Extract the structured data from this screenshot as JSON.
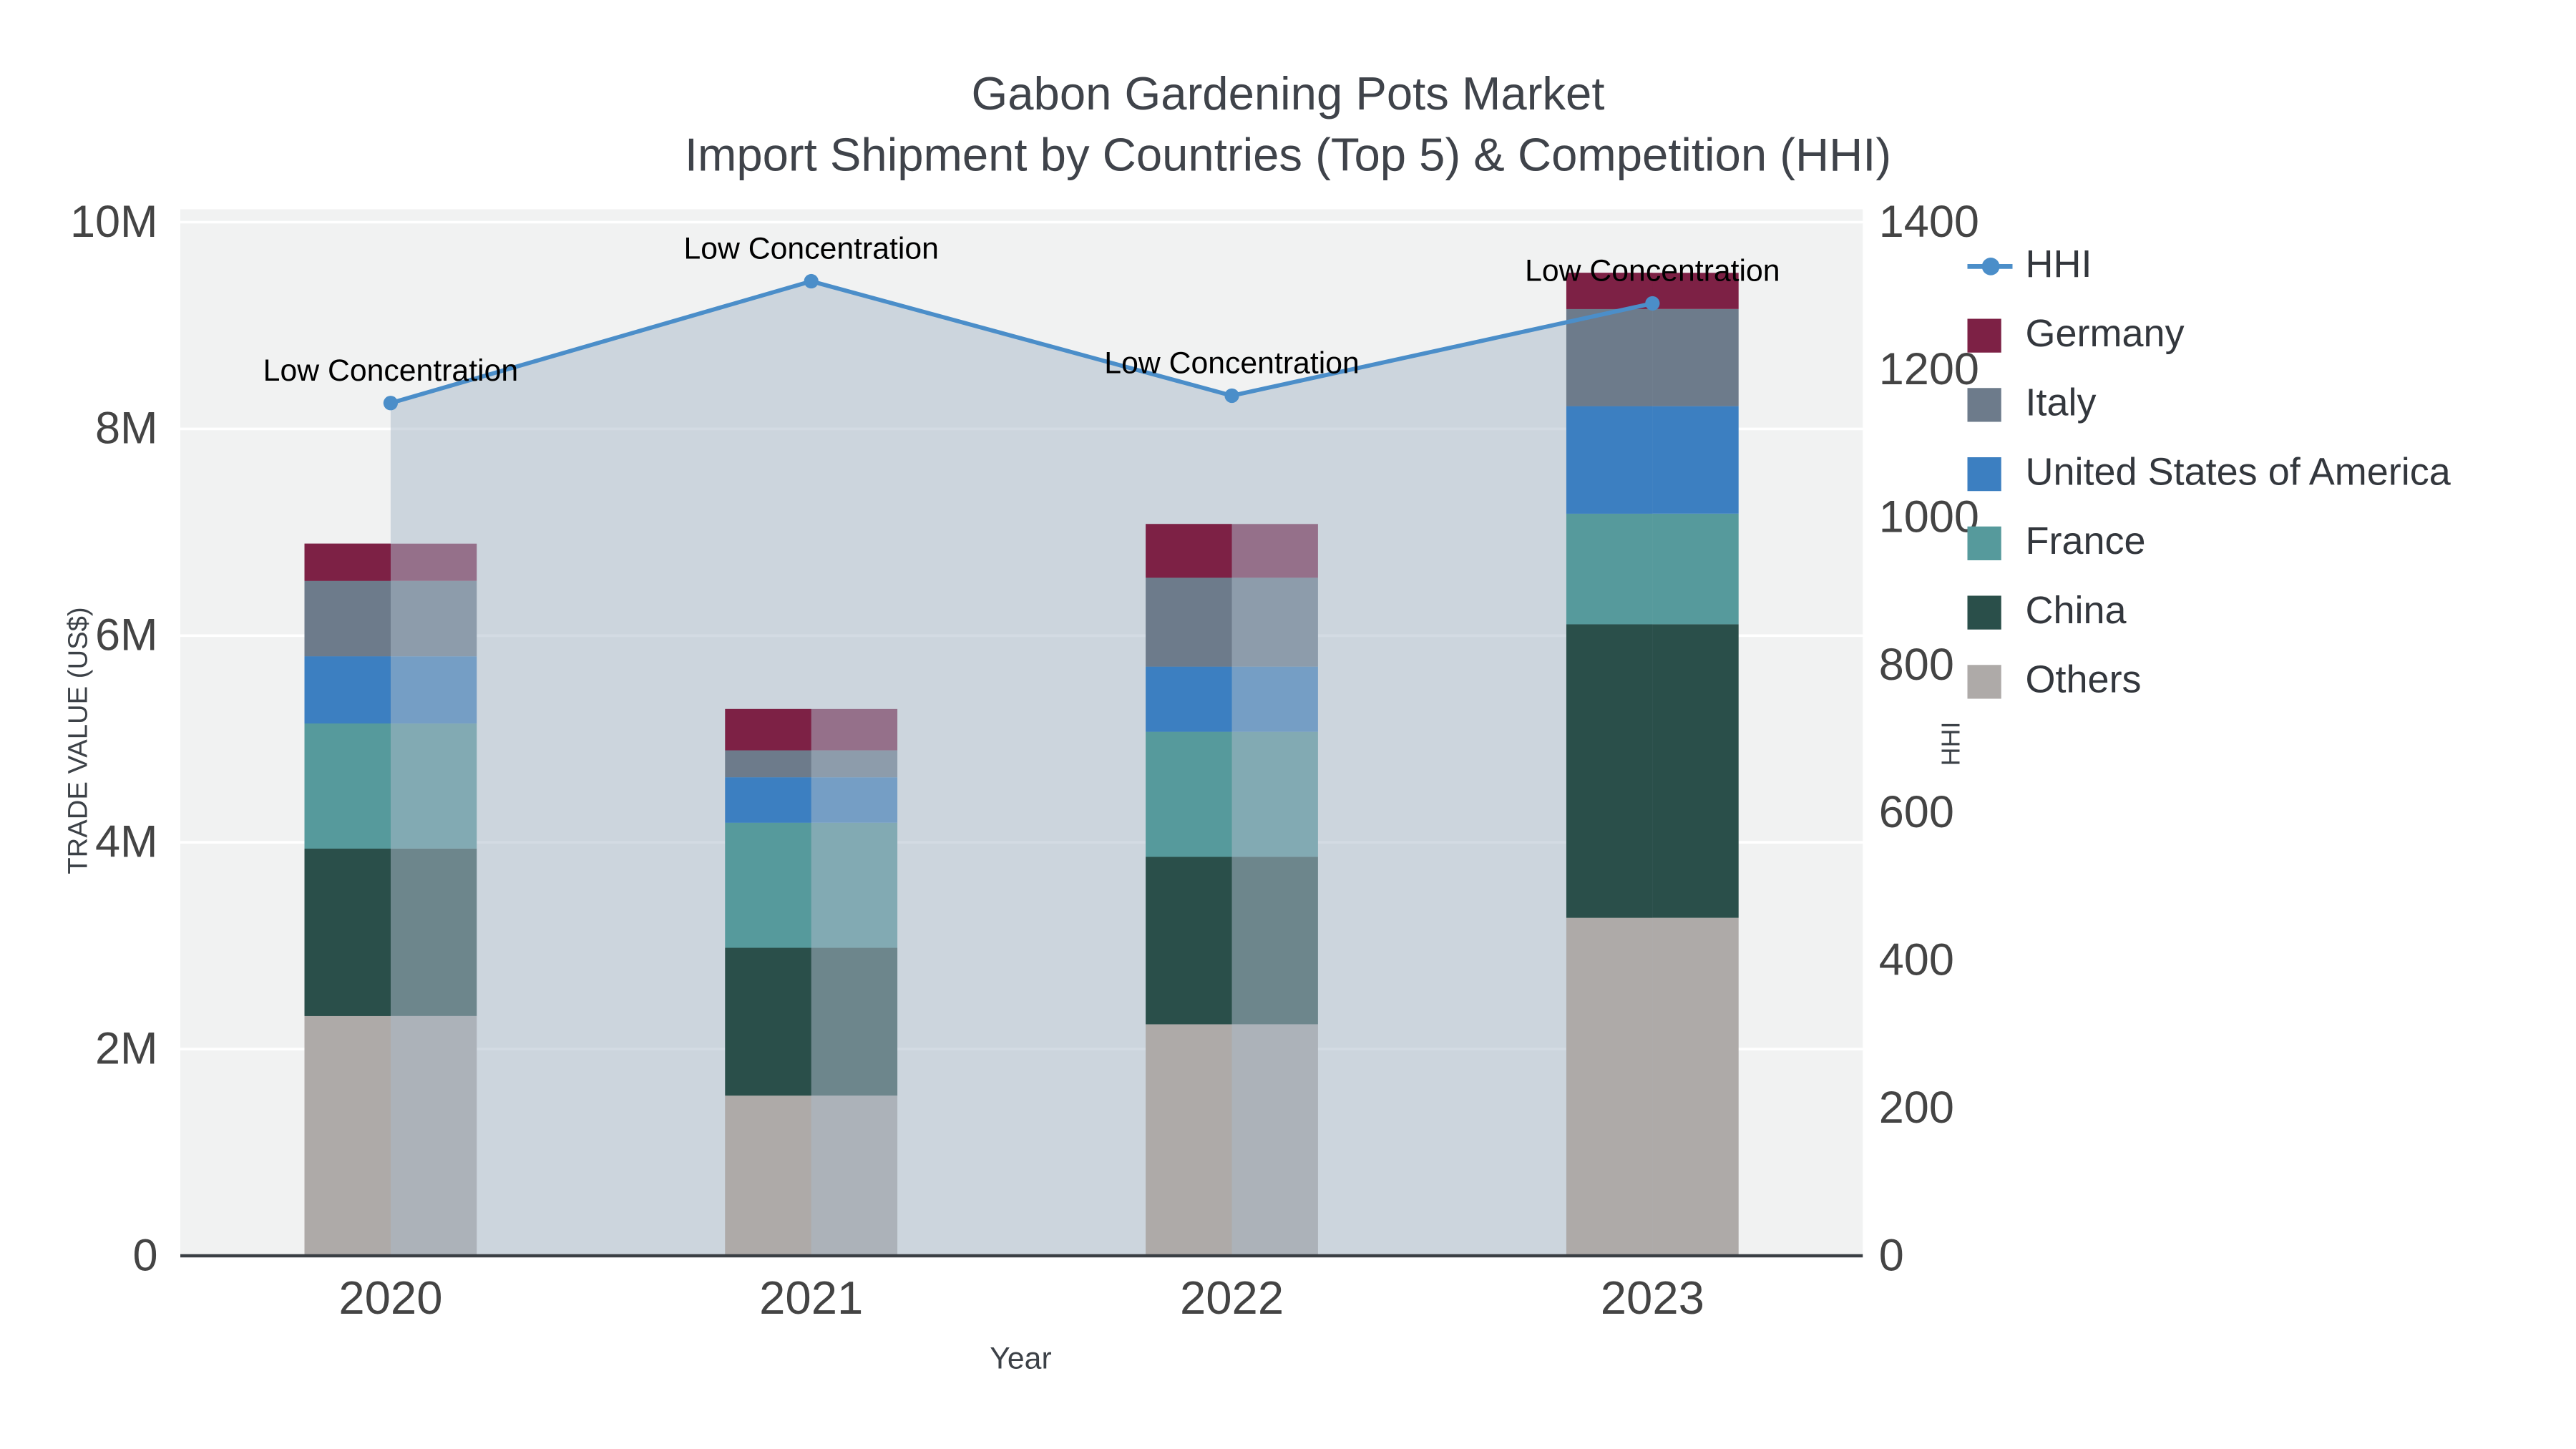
{
  "title": {
    "line1": "Gabon Gardening Pots Market",
    "line2": "Import Shipment by Countries (Top 5) & Competition (HHI)"
  },
  "axes": {
    "left_title": "TRADE VALUE (US$)",
    "right_title": "HHI",
    "x_title": "Year"
  },
  "colors": {
    "plot_background": "#f1f2f2",
    "gridline": "#ffffff",
    "axis_line": "#3a3f44",
    "tick_text": "#444444",
    "title_text": "#3f434a",
    "annotation_text": "#000000"
  },
  "legend": {
    "items": [
      {
        "key": "hhi",
        "label": "HHI",
        "type": "line",
        "color": "#4b8ec9"
      },
      {
        "key": "germany",
        "label": "Germany",
        "type": "square",
        "color": "#7d2145"
      },
      {
        "key": "italy",
        "label": "Italy",
        "type": "square",
        "color": "#6d7b8b"
      },
      {
        "key": "usa",
        "label": "United States of America",
        "type": "square",
        "color": "#3c7fc1"
      },
      {
        "key": "france",
        "label": "France",
        "type": "square",
        "color": "#569a9c"
      },
      {
        "key": "china",
        "label": "China",
        "type": "square",
        "color": "#2a4f4a"
      },
      {
        "key": "others",
        "label": "Others",
        "type": "square",
        "color": "#aeaaa8"
      }
    ]
  },
  "chart_data": {
    "type": "bar",
    "subtype": "stacked-bars-with-hhi-line-overlay",
    "categories": [
      "2020",
      "2021",
      "2022",
      "2023"
    ],
    "series": [
      {
        "key": "others",
        "name": "Others",
        "color": "#aeaaa8",
        "values": [
          2320000,
          1550000,
          2240000,
          3270000
        ]
      },
      {
        "key": "china",
        "name": "China",
        "color": "#2a4f4a",
        "values": [
          1620000,
          1430000,
          1620000,
          2840000
        ]
      },
      {
        "key": "france",
        "name": "France",
        "color": "#569a9c",
        "values": [
          1210000,
          1210000,
          1210000,
          1070000
        ]
      },
      {
        "key": "usa",
        "name": "United States of America",
        "color": "#3c7fc1",
        "values": [
          650000,
          440000,
          630000,
          1040000
        ]
      },
      {
        "key": "italy",
        "name": "Italy",
        "color": "#6d7b8b",
        "values": [
          730000,
          260000,
          860000,
          940000
        ]
      },
      {
        "key": "germany",
        "name": "Germany",
        "color": "#7d2145",
        "values": [
          360000,
          400000,
          520000,
          350000
        ]
      }
    ],
    "hhi_line": {
      "name": "HHI",
      "values": [
        1155,
        1320,
        1165,
        1290
      ],
      "color": "#4b8ec9",
      "fill_color": "#abbac9",
      "fill_opacity": 0.52,
      "annotations": [
        "Low Concentration",
        "Low Concentration",
        "Low Concentration",
        "Low Concentration"
      ]
    },
    "left_axis": {
      "title": "TRADE VALUE (US$)",
      "min": 0,
      "max": 10000000,
      "tick_values": [
        0,
        2000000,
        4000000,
        6000000,
        8000000,
        10000000
      ],
      "tick_labels": [
        "0",
        "2M",
        "4M",
        "6M",
        "8M",
        "10M"
      ]
    },
    "right_axis": {
      "title": "HHI",
      "min": 0,
      "max": 1400,
      "tick_values": [
        0,
        200,
        400,
        600,
        800,
        1000,
        1200,
        1400
      ],
      "tick_labels": [
        "0",
        "200",
        "400",
        "600",
        "800",
        "1000",
        "1200",
        "1400"
      ]
    },
    "x_axis": {
      "title": "Year"
    },
    "legend_position": "right",
    "grid": true
  }
}
